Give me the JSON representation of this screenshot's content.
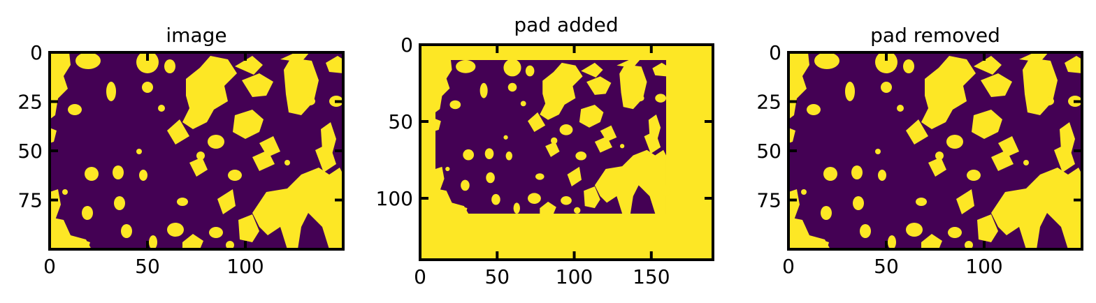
{
  "panels": [
    {
      "title": "image",
      "xticks": [
        "0",
        "50",
        "100"
      ],
      "yticks": [
        "0",
        "25",
        "50",
        "75"
      ]
    },
    {
      "title": "pad added",
      "xticks": [
        "0",
        "50",
        "100",
        "150"
      ],
      "yticks": [
        "0",
        "50",
        "100"
      ]
    },
    {
      "title": "pad removed",
      "xticks": [
        "0",
        "50",
        "100"
      ],
      "yticks": [
        "0",
        "25",
        "50",
        "75"
      ]
    }
  ],
  "chart_data": [
    {
      "type": "heatmap",
      "title": "image",
      "xlim": [
        0,
        150
      ],
      "ylim": [
        100,
        0
      ],
      "xticks": [
        0,
        50,
        100
      ],
      "yticks": [
        0,
        25,
        50,
        75
      ],
      "colors": {
        "background": "#440154",
        "foreground": "#fde725"
      },
      "description_values": "binary field, 0 = background, 1 = foreground"
    },
    {
      "type": "heatmap",
      "title": "pad added",
      "xlim": [
        0,
        190
      ],
      "ylim": [
        140,
        0
      ],
      "xticks": [
        0,
        50,
        100,
        150
      ],
      "yticks": [
        0,
        50,
        100
      ],
      "colors": {
        "background": "#440154",
        "foreground": "#fde725"
      },
      "inner_image_region": {
        "x": [
          10,
          160
        ],
        "y": [
          10,
          110
        ]
      }
    },
    {
      "type": "heatmap",
      "title": "pad removed",
      "xlim": [
        0,
        150
      ],
      "ylim": [
        100,
        0
      ],
      "xticks": [
        0,
        50,
        100
      ],
      "yticks": [
        0,
        25,
        50,
        75
      ],
      "colors": {
        "background": "#440154",
        "foreground": "#fde725"
      }
    }
  ]
}
